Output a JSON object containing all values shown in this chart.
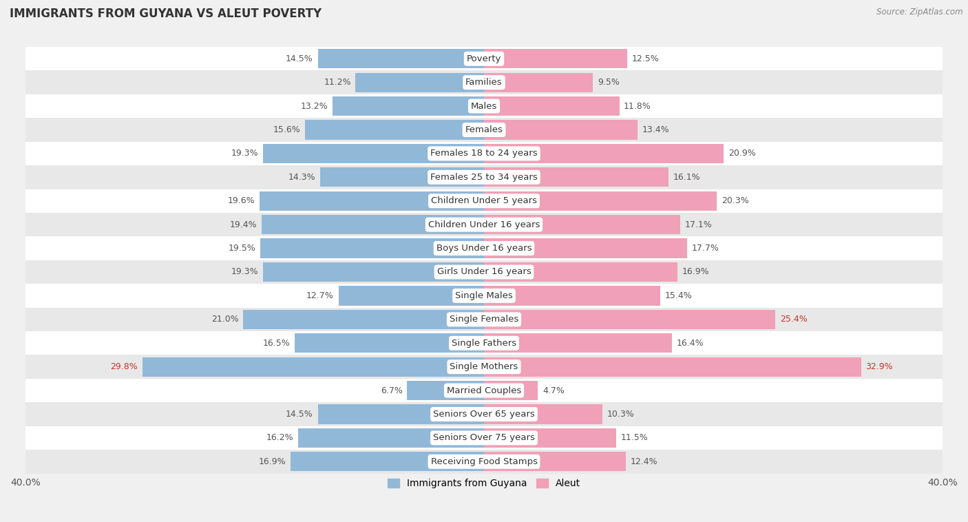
{
  "title": "IMMIGRANTS FROM GUYANA VS ALEUT POVERTY",
  "source": "Source: ZipAtlas.com",
  "categories": [
    "Poverty",
    "Families",
    "Males",
    "Females",
    "Females 18 to 24 years",
    "Females 25 to 34 years",
    "Children Under 5 years",
    "Children Under 16 years",
    "Boys Under 16 years",
    "Girls Under 16 years",
    "Single Males",
    "Single Females",
    "Single Fathers",
    "Single Mothers",
    "Married Couples",
    "Seniors Over 65 years",
    "Seniors Over 75 years",
    "Receiving Food Stamps"
  ],
  "guyana_values": [
    14.5,
    11.2,
    13.2,
    15.6,
    19.3,
    14.3,
    19.6,
    19.4,
    19.5,
    19.3,
    12.7,
    21.0,
    16.5,
    29.8,
    6.7,
    14.5,
    16.2,
    16.9
  ],
  "aleut_values": [
    12.5,
    9.5,
    11.8,
    13.4,
    20.9,
    16.1,
    20.3,
    17.1,
    17.7,
    16.9,
    15.4,
    25.4,
    16.4,
    32.9,
    4.7,
    10.3,
    11.5,
    12.4
  ],
  "guyana_color": "#92b8d8",
  "aleut_color": "#f0a0b8",
  "background_color": "#f0f0f0",
  "row_white": "#ffffff",
  "row_gray": "#e8e8e8",
  "x_max": 40.0,
  "bar_height": 0.82,
  "label_fontsize": 9.0,
  "cat_fontsize": 9.5,
  "legend_guyana": "Immigrants from Guyana",
  "legend_aleut": "Aleut",
  "value_color_guyana": "#c0392b",
  "value_color_aleut": "#555555",
  "guyana_highlight_rows": [
    13
  ],
  "aleut_highlight_rows": [
    11,
    13
  ]
}
